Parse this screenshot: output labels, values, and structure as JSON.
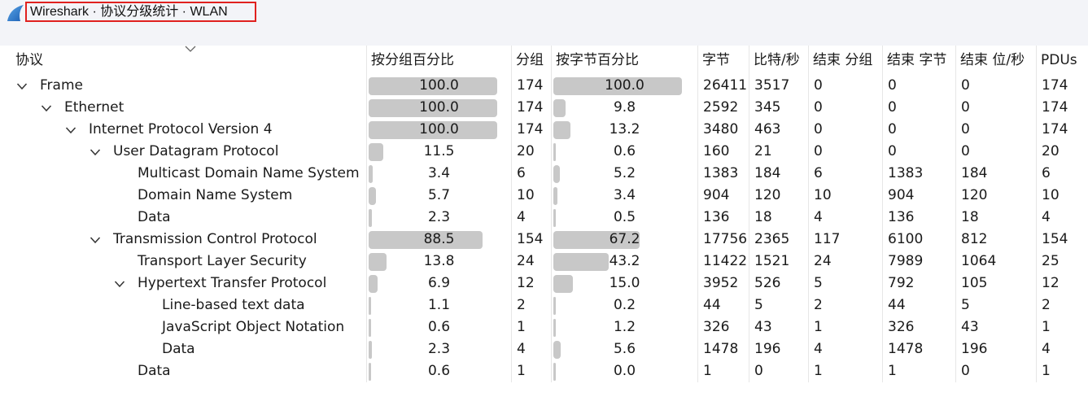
{
  "window": {
    "title": "Wireshark · 协议分级统计 · WLAN"
  },
  "columns": [
    "协议",
    "按分组百分比",
    "分组",
    "按字节百分比",
    "字节",
    "比特/秒",
    "结束 分组",
    "结束 字节",
    "结束 位/秒",
    "PDUs"
  ],
  "rows": [
    {
      "name": "Frame",
      "level": 0,
      "expandable": true,
      "pkt_pct": "100.0",
      "pkts": "174",
      "byte_pct": "100.0",
      "bytes": "26411",
      "bps": "3517",
      "end_pkts": "0",
      "end_bytes": "0",
      "end_bps": "0",
      "pdus": "174"
    },
    {
      "name": "Ethernet",
      "level": 1,
      "expandable": true,
      "pkt_pct": "100.0",
      "pkts": "174",
      "byte_pct": "9.8",
      "bytes": "2592",
      "bps": "345",
      "end_pkts": "0",
      "end_bytes": "0",
      "end_bps": "0",
      "pdus": "174"
    },
    {
      "name": "Internet Protocol Version 4",
      "level": 2,
      "expandable": true,
      "pkt_pct": "100.0",
      "pkts": "174",
      "byte_pct": "13.2",
      "bytes": "3480",
      "bps": "463",
      "end_pkts": "0",
      "end_bytes": "0",
      "end_bps": "0",
      "pdus": "174"
    },
    {
      "name": "User Datagram Protocol",
      "level": 3,
      "expandable": true,
      "pkt_pct": "11.5",
      "pkts": "20",
      "byte_pct": "0.6",
      "bytes": "160",
      "bps": "21",
      "end_pkts": "0",
      "end_bytes": "0",
      "end_bps": "0",
      "pdus": "20"
    },
    {
      "name": "Multicast Domain Name System",
      "level": 4,
      "expandable": false,
      "pkt_pct": "3.4",
      "pkts": "6",
      "byte_pct": "5.2",
      "bytes": "1383",
      "bps": "184",
      "end_pkts": "6",
      "end_bytes": "1383",
      "end_bps": "184",
      "pdus": "6"
    },
    {
      "name": "Domain Name System",
      "level": 4,
      "expandable": false,
      "pkt_pct": "5.7",
      "pkts": "10",
      "byte_pct": "3.4",
      "bytes": "904",
      "bps": "120",
      "end_pkts": "10",
      "end_bytes": "904",
      "end_bps": "120",
      "pdus": "10"
    },
    {
      "name": "Data",
      "level": 4,
      "expandable": false,
      "pkt_pct": "2.3",
      "pkts": "4",
      "byte_pct": "0.5",
      "bytes": "136",
      "bps": "18",
      "end_pkts": "4",
      "end_bytes": "136",
      "end_bps": "18",
      "pdus": "4"
    },
    {
      "name": "Transmission Control Protocol",
      "level": 3,
      "expandable": true,
      "pkt_pct": "88.5",
      "pkts": "154",
      "byte_pct": "67.2",
      "bytes": "17756",
      "bps": "2365",
      "end_pkts": "117",
      "end_bytes": "6100",
      "end_bps": "812",
      "pdus": "154"
    },
    {
      "name": "Transport Layer Security",
      "level": 4,
      "expandable": false,
      "pkt_pct": "13.8",
      "pkts": "24",
      "byte_pct": "43.2",
      "bytes": "11422",
      "bps": "1521",
      "end_pkts": "24",
      "end_bytes": "7989",
      "end_bps": "1064",
      "pdus": "25"
    },
    {
      "name": "Hypertext Transfer Protocol",
      "level": 4,
      "expandable": true,
      "pkt_pct": "6.9",
      "pkts": "12",
      "byte_pct": "15.0",
      "bytes": "3952",
      "bps": "526",
      "end_pkts": "5",
      "end_bytes": "792",
      "end_bps": "105",
      "pdus": "12"
    },
    {
      "name": "Line-based text data",
      "level": 5,
      "expandable": false,
      "pkt_pct": "1.1",
      "pkts": "2",
      "byte_pct": "0.2",
      "bytes": "44",
      "bps": "5",
      "end_pkts": "2",
      "end_bytes": "44",
      "end_bps": "5",
      "pdus": "2"
    },
    {
      "name": "JavaScript Object Notation",
      "level": 5,
      "expandable": false,
      "pkt_pct": "0.6",
      "pkts": "1",
      "byte_pct": "1.2",
      "bytes": "326",
      "bps": "43",
      "end_pkts": "1",
      "end_bytes": "326",
      "end_bps": "43",
      "pdus": "1"
    },
    {
      "name": "Data",
      "level": 5,
      "expandable": false,
      "pkt_pct": "2.3",
      "pkts": "4",
      "byte_pct": "5.6",
      "bytes": "1478",
      "bps": "196",
      "end_pkts": "4",
      "end_bytes": "1478",
      "end_bps": "196",
      "pdus": "4"
    },
    {
      "name": "Data",
      "level": 4,
      "expandable": false,
      "pkt_pct": "0.6",
      "pkts": "1",
      "byte_pct": "0.0",
      "bytes": "1",
      "bps": "0",
      "end_pkts": "1",
      "end_bytes": "1",
      "end_bps": "0",
      "pdus": "1"
    }
  ],
  "colors": {
    "bar": "#c8c8c8",
    "title_highlight": "#e0211f",
    "titlebar_bg": "#f3f4f8"
  },
  "icons": {
    "app": "wireshark-fin-icon",
    "sort": "chevron-down-icon",
    "expander": "chevron-down-icon"
  }
}
